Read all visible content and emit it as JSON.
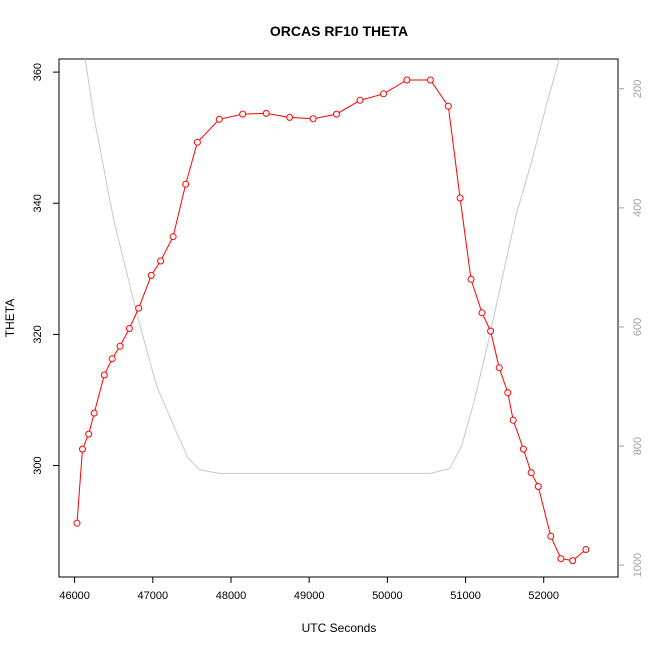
{
  "chart_data": {
    "type": "line",
    "title": "ORCAS RF10 THETA",
    "xlabel": "UTC Seconds",
    "ylabel": "THETA",
    "xlim": [
      45800,
      52950
    ],
    "ylim": [
      283,
      362
    ],
    "x_ticks": [
      46000,
      47000,
      48000,
      49000,
      50000,
      51000,
      52000
    ],
    "y_ticks": [
      300,
      320,
      340,
      360
    ],
    "grid": false,
    "legend": "none",
    "series": [
      {
        "color": "#ff0000",
        "marker": "open-circle",
        "x": [
          46030,
          46100,
          46180,
          46250,
          46380,
          46480,
          46580,
          46700,
          46820,
          46980,
          47100,
          47260,
          47420,
          47570,
          47850,
          48150,
          48450,
          48750,
          49050,
          49350,
          49650,
          49950,
          50250,
          50550,
          50780,
          50930,
          51070,
          51210,
          51320,
          51430,
          51540,
          51610,
          51740,
          51840,
          51930,
          52090,
          52220,
          52370,
          52540
        ],
        "y": [
          291.2,
          302.5,
          304.8,
          308.0,
          313.8,
          316.3,
          318.2,
          320.9,
          324.0,
          329.0,
          331.2,
          334.9,
          342.9,
          349.3,
          352.8,
          353.6,
          353.7,
          353.1,
          352.9,
          353.6,
          355.7,
          356.7,
          358.8,
          358.8,
          354.8,
          340.8,
          328.4,
          323.3,
          320.5,
          314.9,
          311.1,
          306.9,
          302.5,
          298.9,
          296.8,
          289.2,
          285.8,
          285.5,
          287.2
        ]
      },
      {
        "color": "#c8c8c8",
        "marker": "none",
        "axis": "right",
        "x": [
          46100,
          46250,
          46500,
          46800,
          47050,
          47280,
          47450,
          47600,
          47850,
          50000,
          50550,
          50800,
          50950,
          51100,
          51300,
          51500,
          51650,
          51850,
          52050,
          52200
        ],
        "y": [
          120,
          250,
          420,
          580,
          700,
          770,
          820,
          840,
          846,
          846,
          846,
          838,
          800,
          730,
          620,
          500,
          410,
          320,
          220,
          150
        ]
      }
    ],
    "right_axis": {
      "ticks": [
        200,
        400,
        600,
        800,
        1000
      ],
      "ylim": [
        1020,
        150
      ],
      "reversed": true,
      "color": "#a0a0a0"
    }
  }
}
